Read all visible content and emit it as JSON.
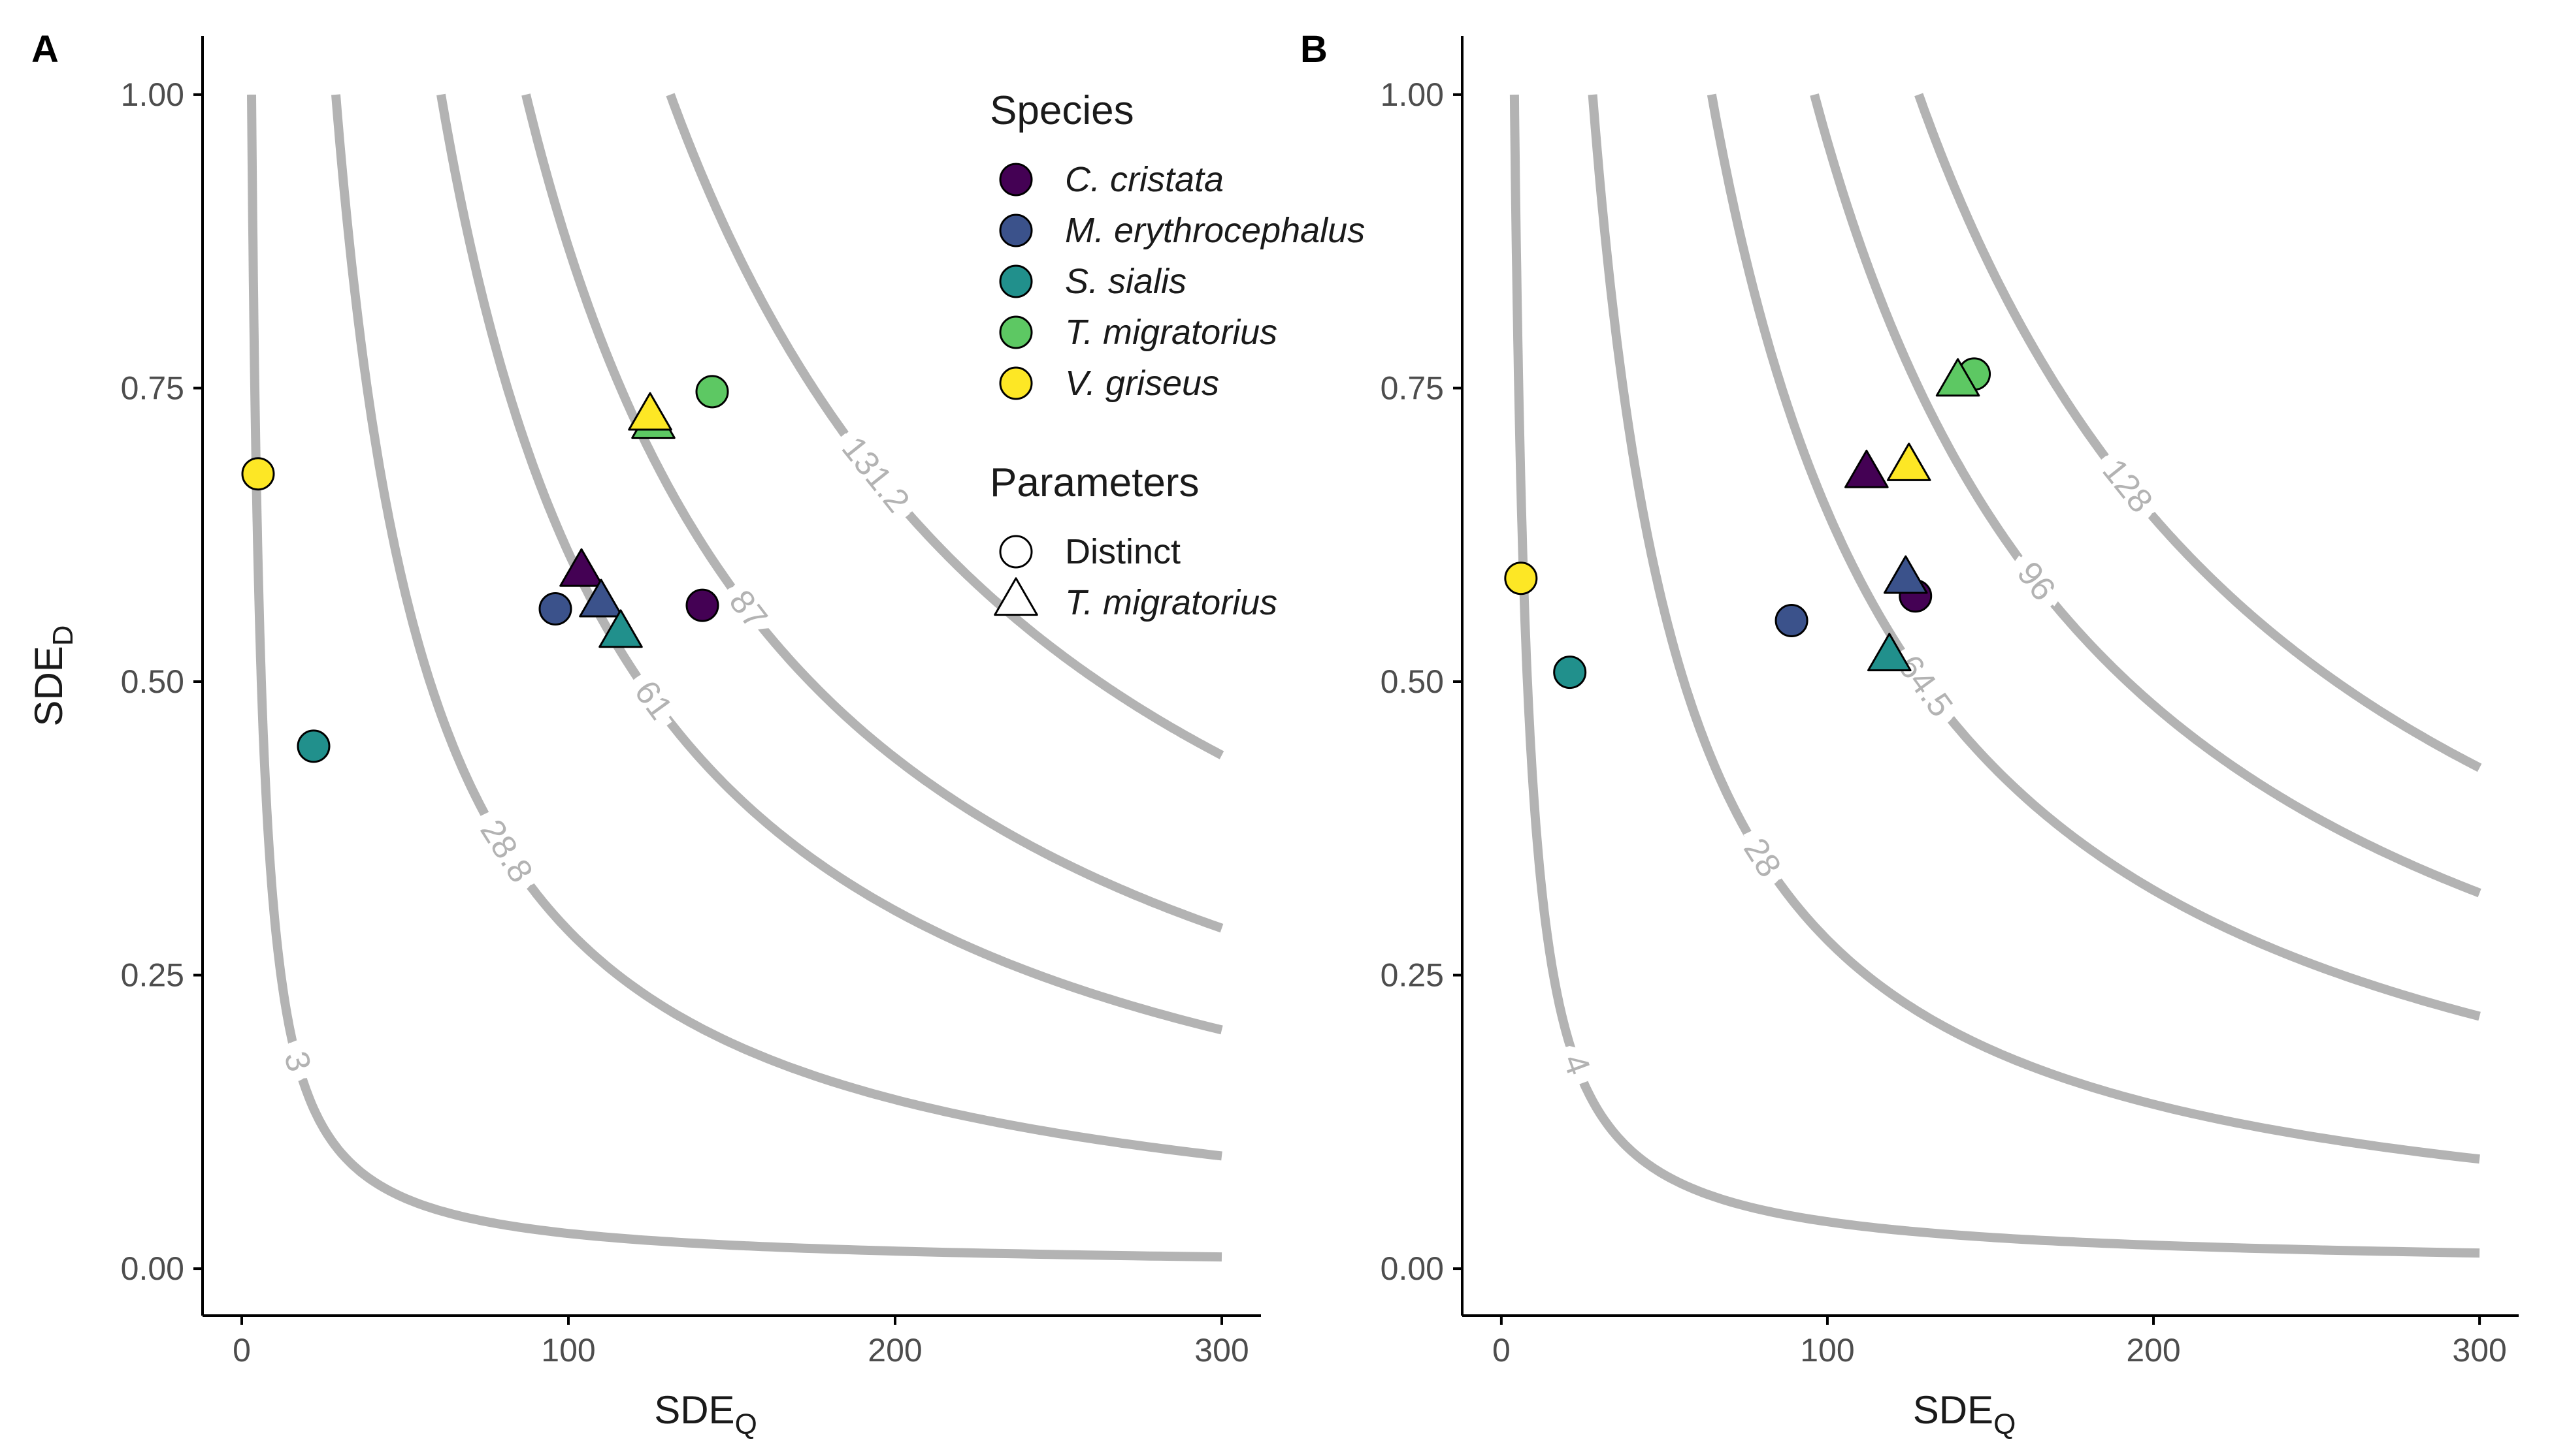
{
  "chart_data": [
    {
      "type": "scatter",
      "panel": "A",
      "xlabel": "SDE",
      "xlabel_sub": "Q",
      "ylabel": "SDE",
      "ylabel_sub": "D",
      "xlim": [
        -12,
        312
      ],
      "ylim": [
        -0.04,
        1.05
      ],
      "xticks": [
        {
          "value": 0,
          "label": "0"
        },
        {
          "value": 100,
          "label": "100"
        },
        {
          "value": 200,
          "label": "200"
        },
        {
          "value": 300,
          "label": "300"
        }
      ],
      "yticks": [
        {
          "value": 0,
          "label": "0.00"
        },
        {
          "value": 0.25,
          "label": "0.25"
        },
        {
          "value": 0.5,
          "label": "0.50"
        },
        {
          "value": 0.75,
          "label": "0.75"
        },
        {
          "value": 1,
          "label": "1.00"
        }
      ],
      "contours": [
        {
          "level": 3,
          "label": "3",
          "label_x": 17
        },
        {
          "level": 28.8,
          "label": "28.8",
          "label_x": 81
        },
        {
          "level": 61,
          "label": "61",
          "label_x": 126
        },
        {
          "level": 87,
          "label": "87",
          "label_x": 155
        },
        {
          "level": 131.2,
          "label": "131.2",
          "label_x": 194
        }
      ],
      "points": [
        {
          "species": "C. cristata",
          "parameters": "Distinct",
          "x": 141,
          "y": 0.565
        },
        {
          "species": "M. erythrocephalus",
          "parameters": "Distinct",
          "x": 96,
          "y": 0.562
        },
        {
          "species": "S. sialis",
          "parameters": "Distinct",
          "x": 22,
          "y": 0.445
        },
        {
          "species": "T. migratorius",
          "parameters": "Distinct",
          "x": 144,
          "y": 0.747
        },
        {
          "species": "V. griseus",
          "parameters": "Distinct",
          "x": 5,
          "y": 0.677
        },
        {
          "species": "C. cristata",
          "parameters": "T. migratorius",
          "x": 104,
          "y": 0.592
        },
        {
          "species": "M. erythrocephalus",
          "parameters": "T. migratorius",
          "x": 110,
          "y": 0.566
        },
        {
          "species": "S. sialis",
          "parameters": "T. migratorius",
          "x": 116,
          "y": 0.54
        },
        {
          "species": "T. migratorius",
          "parameters": "T. migratorius",
          "x": 126,
          "y": 0.718
        },
        {
          "species": "V. griseus",
          "parameters": "T. migratorius",
          "x": 125,
          "y": 0.725
        }
      ]
    },
    {
      "type": "scatter",
      "panel": "B",
      "xlabel": "SDE",
      "xlabel_sub": "Q",
      "ylabel": "",
      "ylabel_sub": "",
      "xlim": [
        -12,
        312
      ],
      "ylim": [
        -0.04,
        1.05
      ],
      "xticks": [
        {
          "value": 0,
          "label": "0"
        },
        {
          "value": 100,
          "label": "100"
        },
        {
          "value": 200,
          "label": "200"
        },
        {
          "value": 300,
          "label": "300"
        }
      ],
      "yticks": [
        {
          "value": 0,
          "label": "0.00"
        },
        {
          "value": 0.25,
          "label": "0.25"
        },
        {
          "value": 0.5,
          "label": "0.50"
        },
        {
          "value": 0.75,
          "label": "0.75"
        },
        {
          "value": 1,
          "label": "1.00"
        }
      ],
      "contours": [
        {
          "level": 4,
          "label": "4",
          "label_x": 23
        },
        {
          "level": 28,
          "label": "28",
          "label_x": 80
        },
        {
          "level": 64.5,
          "label": "64.5",
          "label_x": 130
        },
        {
          "level": 96,
          "label": "96",
          "label_x": 164
        },
        {
          "level": 128,
          "label": "128",
          "label_x": 192
        }
      ],
      "points": [
        {
          "species": "C. cristata",
          "parameters": "Distinct",
          "x": 127,
          "y": 0.573
        },
        {
          "species": "M. erythrocephalus",
          "parameters": "Distinct",
          "x": 89,
          "y": 0.552
        },
        {
          "species": "S. sialis",
          "parameters": "Distinct",
          "x": 21,
          "y": 0.508
        },
        {
          "species": "T. migratorius",
          "parameters": "Distinct",
          "x": 145,
          "y": 0.762
        },
        {
          "species": "V. griseus",
          "parameters": "Distinct",
          "x": 6,
          "y": 0.588
        },
        {
          "species": "C. cristata",
          "parameters": "T. migratorius",
          "x": 112,
          "y": 0.676
        },
        {
          "species": "M. erythrocephalus",
          "parameters": "T. migratorius",
          "x": 124,
          "y": 0.586
        },
        {
          "species": "S. sialis",
          "parameters": "T. migratorius",
          "x": 119,
          "y": 0.52
        },
        {
          "species": "T. migratorius",
          "parameters": "T. migratorius",
          "x": 140,
          "y": 0.754
        },
        {
          "species": "V. griseus",
          "parameters": "T. migratorius",
          "x": 125,
          "y": 0.682
        }
      ]
    }
  ],
  "legend": {
    "species_title": "Species",
    "species": [
      {
        "name": "C. cristata",
        "color": "#440154"
      },
      {
        "name": "M. erythrocephalus",
        "color": "#3b528b"
      },
      {
        "name": "S. sialis",
        "color": "#21908c"
      },
      {
        "name": "T. migratorius",
        "color": "#5dc863"
      },
      {
        "name": "V. griseus",
        "color": "#fde725"
      }
    ],
    "parameters_title": "Parameters",
    "parameters": [
      {
        "name": "Distinct",
        "shape": "circle",
        "italic": false
      },
      {
        "name": "T. migratorius",
        "shape": "triangle",
        "italic": true
      }
    ]
  },
  "colors": {
    "contour": "#b3b3b3",
    "axis": "#000000",
    "tick_label": "#4d4d4d"
  }
}
